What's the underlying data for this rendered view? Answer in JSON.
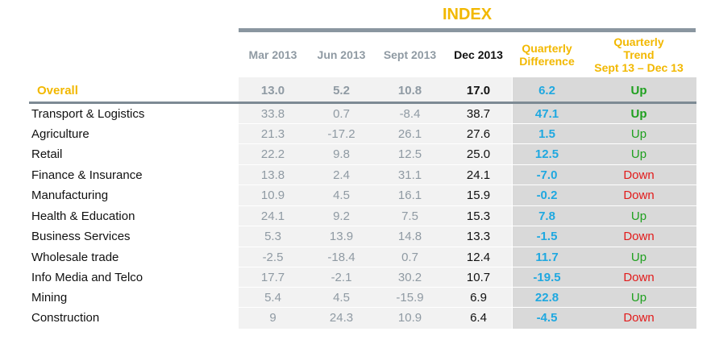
{
  "header": {
    "title": "INDEX",
    "columns": [
      "Mar 2013",
      "Jun 2013",
      "Sept 2013",
      "Dec 2013"
    ],
    "diff_label": "Quarterly\nDifference",
    "trend_label": "Quarterly\nTrend\nSept 13 – Dec 13"
  },
  "colors": {
    "accent": "#f2b800",
    "positive_trend": "#1fa01f",
    "negative_trend": "#e21b1b",
    "difference": "#1fa8e0",
    "muted": "#8f9aa3"
  },
  "chart_data": {
    "type": "table",
    "title": "INDEX",
    "columns": [
      "",
      "Mar 2013",
      "Jun 2013",
      "Sept 2013",
      "Dec 2013",
      "Quarterly Difference",
      "Quarterly Trend Sept 13 – Dec 13"
    ],
    "rows": [
      {
        "label": "Overall",
        "mar": "13.0",
        "jun": "5.2",
        "sep": "10.8",
        "dec": "17.0",
        "diff": "6.2",
        "trend": "Up"
      },
      {
        "label": "Transport  & Logistics",
        "mar": "33.8",
        "jun": "0.7",
        "sep": "-8.4",
        "dec": "38.7",
        "diff": "47.1",
        "trend": "Up"
      },
      {
        "label": "Agriculture",
        "mar": "21.3",
        "jun": "-17.2",
        "sep": "26.1",
        "dec": "27.6",
        "diff": "1.5",
        "trend": "Up"
      },
      {
        "label": "Retail",
        "mar": "22.2",
        "jun": "9.8",
        "sep": "12.5",
        "dec": "25.0",
        "diff": "12.5",
        "trend": "Up"
      },
      {
        "label": "Finance & Insurance",
        "mar": "13.8",
        "jun": "2.4",
        "sep": "31.1",
        "dec": "24.1",
        "diff": "-7.0",
        "trend": "Down"
      },
      {
        "label": "Manufacturing",
        "mar": "10.9",
        "jun": "4.5",
        "sep": "16.1",
        "dec": "15.9",
        "diff": "-0.2",
        "trend": "Down"
      },
      {
        "label": "Health  & Education",
        "mar": "24.1",
        "jun": "9.2",
        "sep": "7.5",
        "dec": "15.3",
        "diff": "7.8",
        "trend": "Up"
      },
      {
        "label": "Business Services",
        "mar": "5.3",
        "jun": "13.9",
        "sep": "14.8",
        "dec": "13.3",
        "diff": "-1.5",
        "trend": "Down"
      },
      {
        "label": "Wholesale trade",
        "mar": "-2.5",
        "jun": "-18.4",
        "sep": "0.7",
        "dec": "12.4",
        "diff": "11.7",
        "trend": "Up"
      },
      {
        "label": "Info Media and Telco",
        "mar": "17.7",
        "jun": "-2.1",
        "sep": "30.2",
        "dec": "10.7",
        "diff": "-19.5",
        "trend": "Down"
      },
      {
        "label": "Mining",
        "mar": "5.4",
        "jun": "4.5",
        "sep": "-15.9",
        "dec": "6.9",
        "diff": "22.8",
        "trend": "Up"
      },
      {
        "label": "Construction",
        "mar": "9",
        "jun": "24.3",
        "sep": "10.9",
        "dec": "6.4",
        "diff": "-4.5",
        "trend": "Down"
      }
    ]
  }
}
